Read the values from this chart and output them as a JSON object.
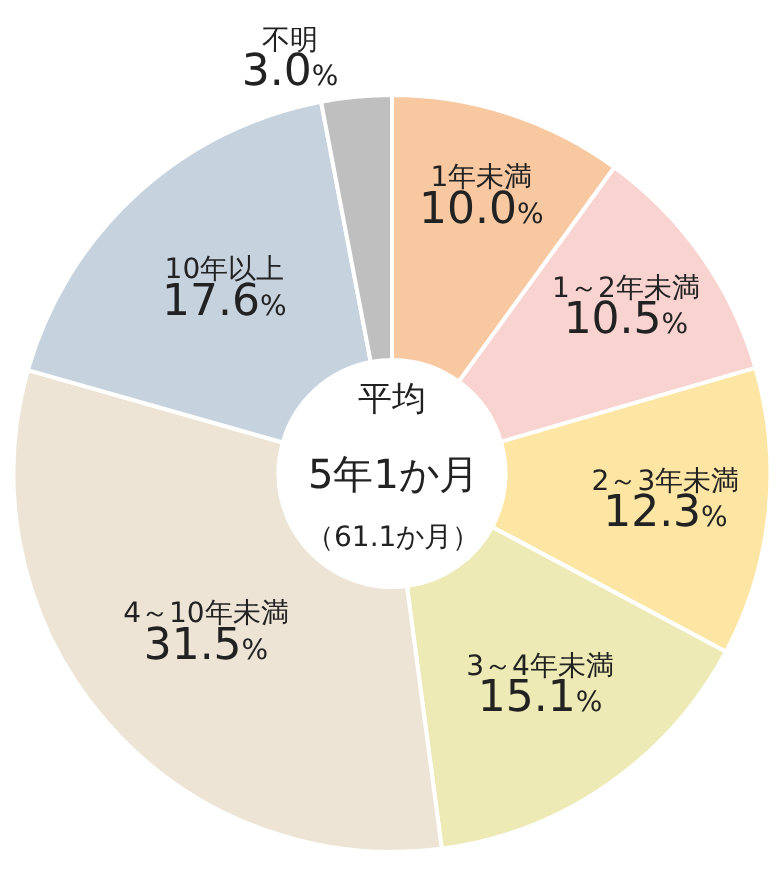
{
  "chart_data": {
    "type": "donut",
    "categories": [
      "1年未満",
      "1～2年未満",
      "2～3年未満",
      "3～4年未満",
      "4～10年未満",
      "10年以上",
      "不明"
    ],
    "values": [
      10.0,
      10.5,
      12.3,
      15.1,
      31.5,
      17.6,
      3.0
    ],
    "colors": [
      "#f8c8a0",
      "#f9d3d0",
      "#fde6a4",
      "#eeeab6",
      "#ede4d6",
      "#c6d3df",
      "#bfbfbf"
    ],
    "value_labels": [
      "10.0%",
      "10.5%",
      "12.3%",
      "15.1%",
      "31.5%",
      "17.6%",
      "3.0%"
    ],
    "annotations": [
      "平均",
      "5年1か月",
      "（61.1か月）"
    ],
    "legend": false
  }
}
